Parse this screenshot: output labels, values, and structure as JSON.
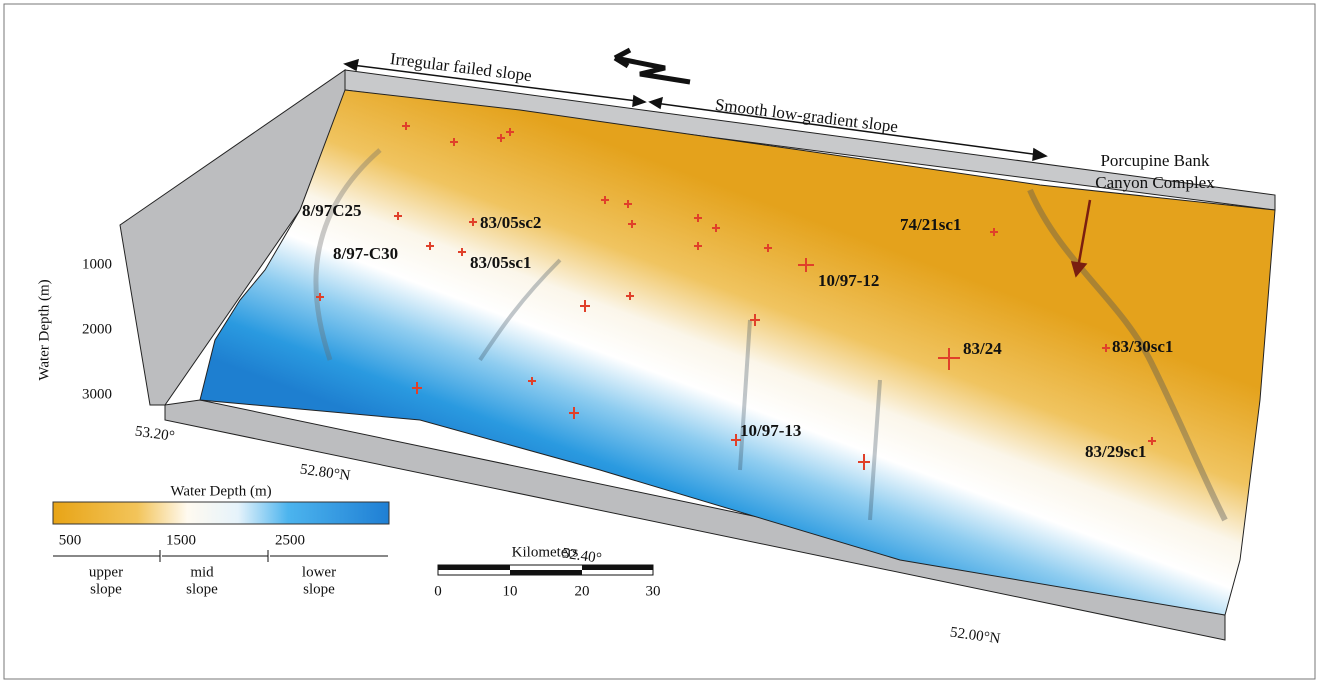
{
  "annotations": {
    "west_arrow": "Irregular failed slope",
    "east_arrow": "Smooth low-gradient slope",
    "canyon_line1": "Porcupine Bank",
    "canyon_line2": "Canyon Complex"
  },
  "stations": [
    "8/97C25",
    "8/97-C30",
    "83/05sc2",
    "83/05sc1",
    "10/97-12",
    "74/21sc1",
    "83/24",
    "83/30sc1",
    "10/97-13",
    "83/29sc1"
  ],
  "depth_axis": {
    "label": "Water Depth (m)",
    "ticks": [
      "1000",
      "2000",
      "3000"
    ]
  },
  "latitude_labels": [
    "53.20°",
    "52.80°N",
    "52.40°",
    "52.00°N"
  ],
  "legend": {
    "title": "Water Depth (m)",
    "ticks": [
      "500",
      "1500",
      "2500"
    ],
    "zones": [
      [
        "upper",
        "slope"
      ],
      [
        "mid",
        "slope"
      ],
      [
        "lower",
        "slope"
      ]
    ]
  },
  "scale_bar": {
    "title": "Kilometers",
    "ticks": [
      "0",
      "10",
      "20",
      "30"
    ]
  }
}
